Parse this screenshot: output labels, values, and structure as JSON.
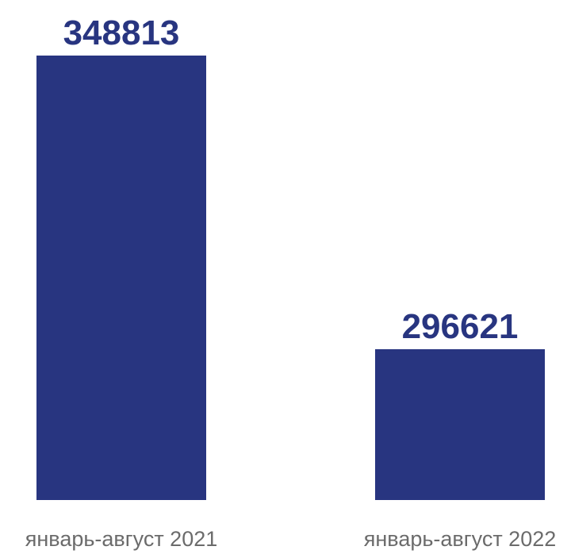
{
  "chart_data": {
    "type": "bar",
    "categories": [
      "январь-август 2021",
      "январь-август 2022"
    ],
    "values": [
      348813,
      296621
    ],
    "data_labels": [
      "348813",
      "296621"
    ],
    "title": "",
    "xlabel": "",
    "ylabel": "",
    "grid": false,
    "legend": "none"
  },
  "colors": {
    "bar": "#283580",
    "value_label": "#283580",
    "category_label": "#6b6b6b"
  }
}
